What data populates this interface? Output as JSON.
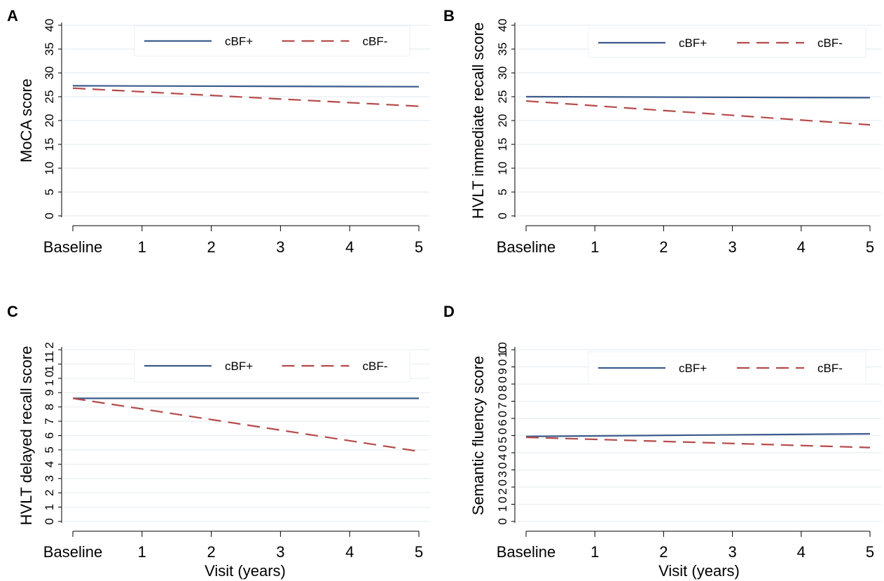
{
  "figure": {
    "background": "#ffffff",
    "plot_background": "#ffffff",
    "grid_color": "#e8edf1",
    "axis_color": "#000000",
    "series_colors": {
      "cBF+": "#3b5b8c",
      "cBF-": "#b54a4a"
    }
  },
  "chart_data": [
    {
      "panel": "A",
      "type": "line",
      "ylabel": "MoCA score",
      "xlabel": "",
      "x": [
        "Baseline",
        "1",
        "2",
        "3",
        "4",
        "5"
      ],
      "x_values": [
        0,
        1,
        2,
        3,
        4,
        5
      ],
      "ylim": [
        0,
        40
      ],
      "yticks": [
        0,
        5,
        10,
        15,
        20,
        25,
        30,
        35,
        40
      ],
      "grid": true,
      "legend": "top",
      "series": [
        {
          "name": "cBF+",
          "style": "solid",
          "color": "#3b5b8c",
          "x": [
            0,
            5
          ],
          "y": [
            27.3,
            27.1
          ]
        },
        {
          "name": "cBF-",
          "style": "dashed",
          "color": "#b54a4a",
          "x": [
            0,
            5
          ],
          "y": [
            26.8,
            23.0
          ]
        }
      ]
    },
    {
      "panel": "B",
      "type": "line",
      "ylabel": "HVLT immediate recall score",
      "xlabel": "",
      "x": [
        "Baseline",
        "1",
        "2",
        "3",
        "4",
        "5"
      ],
      "x_values": [
        0,
        1,
        2,
        3,
        4,
        5
      ],
      "ylim": [
        0,
        40
      ],
      "yticks": [
        0,
        5,
        10,
        15,
        20,
        25,
        30,
        35,
        40
      ],
      "grid": true,
      "legend": "top",
      "series": [
        {
          "name": "cBF+",
          "style": "solid",
          "color": "#3b5b8c",
          "x": [
            0,
            5
          ],
          "y": [
            25.0,
            24.8
          ]
        },
        {
          "name": "cBF-",
          "style": "dashed",
          "color": "#b54a4a",
          "x": [
            0,
            5
          ],
          "y": [
            24.1,
            19.1
          ]
        }
      ]
    },
    {
      "panel": "C",
      "type": "line",
      "ylabel": "HVLT delayed recall score",
      "xlabel": "Visit (years)",
      "x": [
        "Baseline",
        "1",
        "2",
        "3",
        "4",
        "5"
      ],
      "x_values": [
        0,
        1,
        2,
        3,
        4,
        5
      ],
      "ylim": [
        0,
        12
      ],
      "yticks": [
        0,
        1,
        2,
        3,
        4,
        5,
        6,
        7,
        8,
        9,
        10,
        11,
        12
      ],
      "grid": true,
      "legend": "top",
      "series": [
        {
          "name": "cBF+",
          "style": "solid",
          "color": "#3b5b8c",
          "x": [
            0,
            5
          ],
          "y": [
            8.6,
            8.6
          ]
        },
        {
          "name": "cBF-",
          "style": "dashed",
          "color": "#b54a4a",
          "x": [
            0,
            5
          ],
          "y": [
            8.6,
            4.9
          ]
        }
      ]
    },
    {
      "panel": "D",
      "type": "line",
      "ylabel": "Semantic fluency score",
      "xlabel": "Visit (years)",
      "x": [
        "Baseline",
        "1",
        "2",
        "3",
        "4",
        "5"
      ],
      "x_values": [
        0,
        1,
        2,
        3,
        4,
        5
      ],
      "ylim": [
        0,
        100
      ],
      "yticks": [
        0,
        10,
        20,
        30,
        40,
        50,
        60,
        70,
        80,
        90,
        100
      ],
      "grid": true,
      "legend": "top",
      "series": [
        {
          "name": "cBF+",
          "style": "solid",
          "color": "#3b5b8c",
          "x": [
            0,
            5
          ],
          "y": [
            49.5,
            51.0
          ]
        },
        {
          "name": "cBF-",
          "style": "dashed",
          "color": "#b54a4a",
          "x": [
            0,
            5
          ],
          "y": [
            49.0,
            43.0
          ]
        }
      ]
    }
  ]
}
